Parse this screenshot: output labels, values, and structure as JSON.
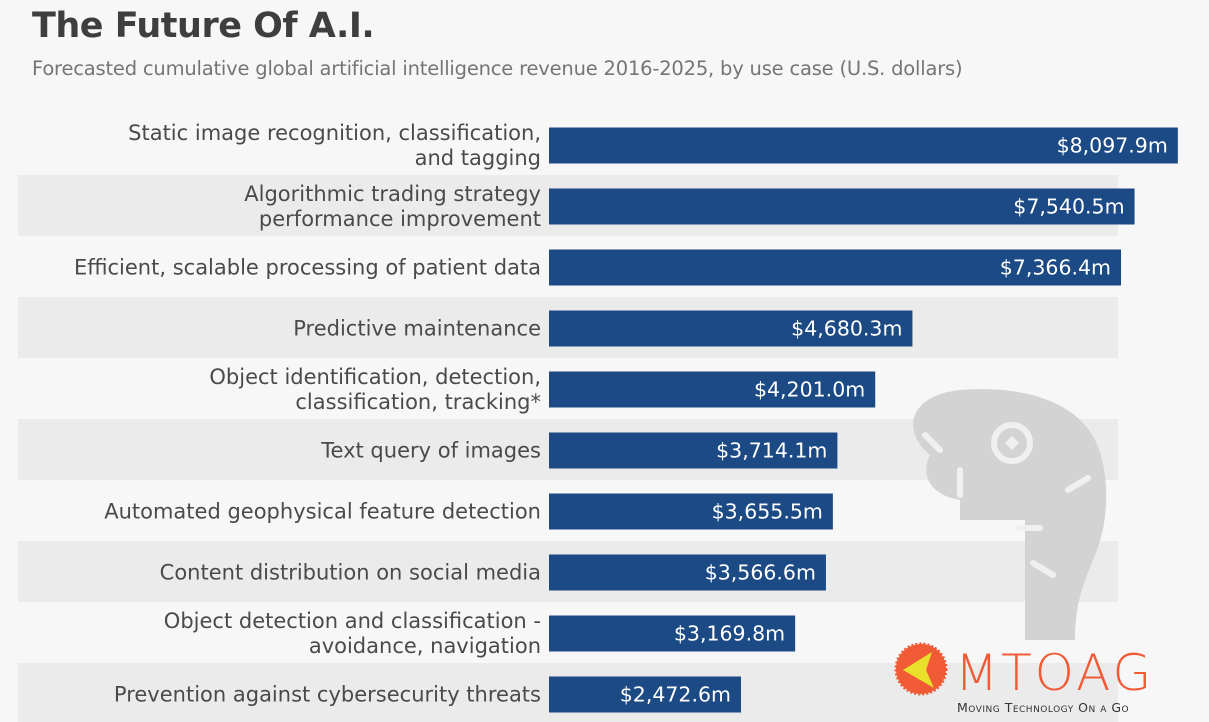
{
  "chart_data": {
    "type": "bar",
    "orientation": "horizontal",
    "title": "The Future Of A.I.",
    "subtitle": "Forecasted cumulative global artificial intelligence revenue 2016-2025, by use case (U.S. dollars)",
    "xlabel": "",
    "ylabel": "",
    "unit": "million U.S. dollars",
    "xlim": [
      0,
      8100
    ],
    "grid": false,
    "legend": "none",
    "categories": [
      [
        "Static image recognition, classification,",
        "and tagging"
      ],
      [
        "Algorithmic trading strategy",
        "performance improvement"
      ],
      [
        "Efficient, scalable processing of patient data"
      ],
      [
        "Predictive maintenance"
      ],
      [
        "Object identification, detection,",
        "classification, tracking*"
      ],
      [
        "Text query of images"
      ],
      [
        "Automated geophysical feature detection"
      ],
      [
        "Content distribution on social media"
      ],
      [
        "Object detection and classification -",
        "avoidance, navigation"
      ],
      [
        "Prevention against cybersecurity threats"
      ]
    ],
    "values": [
      8097.9,
      7540.5,
      7366.4,
      4680.3,
      4201.0,
      3714.1,
      3655.5,
      3566.6,
      3169.8,
      2472.6
    ],
    "data_labels": [
      "$8,097.9m",
      "$7,540.5m",
      "$7,366.4m",
      "$4,680.3m",
      "$4,201.0m",
      "$3,714.1m",
      "$3,655.5m",
      "$3,566.6m",
      "$3,169.8m",
      "$2,472.6m"
    ],
    "colors": {
      "bar": "#1c4a85",
      "row_band": "#ebebeb",
      "background": "#f7f7f7",
      "watermark": "#d3d3d3"
    }
  },
  "watermark_logo": {
    "brand": "MTOAG",
    "tagline": "Moving Technology On a Go",
    "colors": {
      "primary": "#f05a35",
      "accent": "#e8e02a",
      "tagline": "#333333"
    }
  }
}
